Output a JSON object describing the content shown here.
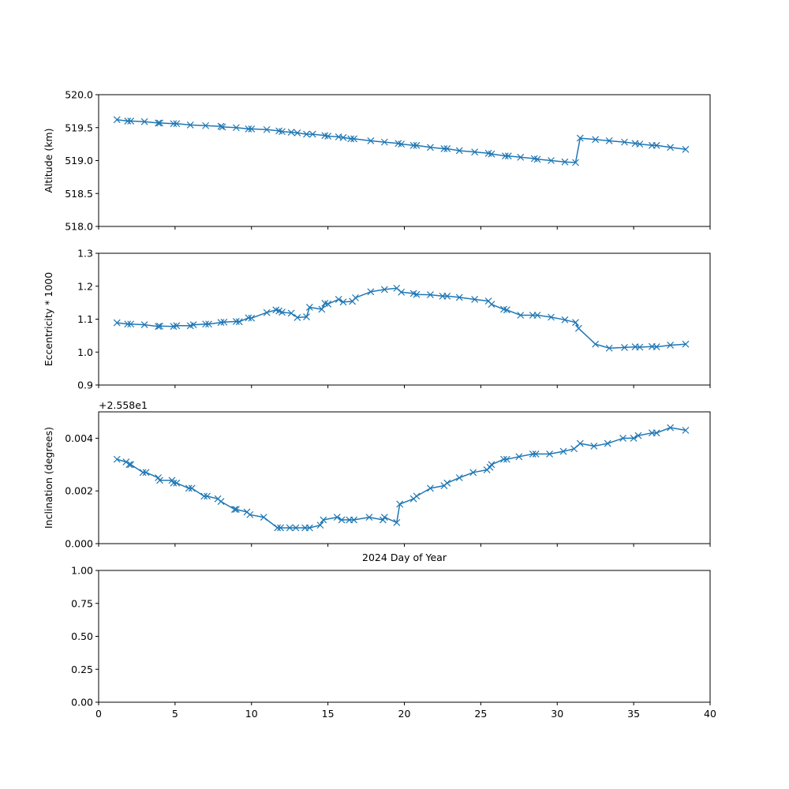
{
  "chart_data": [
    {
      "type": "line",
      "ylabel": "Altitude (km)",
      "xlim": [
        0,
        40
      ],
      "ylim": [
        518.0,
        520.0
      ],
      "yticks": [
        "518.0",
        "518.5",
        "519.0",
        "519.5",
        "520.0"
      ],
      "series": [
        {
          "x": [
            1.2,
            1.9,
            2.1,
            3.0,
            3.9,
            4.0,
            4.9,
            5.1,
            6.0,
            7.0,
            8.0,
            8.1,
            9.0,
            9.8,
            10.0,
            11.0,
            11.8,
            12.0,
            12.6,
            13.0,
            13.6,
            14.0,
            14.8,
            15.0,
            15.7,
            16.0,
            16.5,
            16.7,
            17.8,
            18.7,
            19.6,
            19.8,
            20.6,
            20.8,
            21.7,
            22.6,
            22.8,
            23.6,
            24.6,
            25.5,
            25.7,
            26.6,
            26.8,
            27.6,
            28.5,
            28.7,
            29.6,
            30.5,
            31.2,
            31.5,
            32.5,
            33.4,
            34.4,
            35.1,
            35.4,
            36.2,
            36.5,
            37.4,
            38.4
          ],
          "y": [
            519.62,
            519.6,
            519.6,
            519.59,
            519.57,
            519.57,
            519.56,
            519.56,
            519.54,
            519.53,
            519.52,
            519.51,
            519.5,
            519.48,
            519.48,
            519.47,
            519.45,
            519.44,
            519.43,
            519.42,
            519.4,
            519.4,
            519.38,
            519.37,
            519.36,
            519.35,
            519.33,
            519.33,
            519.3,
            519.28,
            519.26,
            519.25,
            519.23,
            519.23,
            519.2,
            519.18,
            519.18,
            519.15,
            519.13,
            519.11,
            519.1,
            519.07,
            519.07,
            519.05,
            519.03,
            519.02,
            519.0,
            518.98,
            518.97,
            519.34,
            519.32,
            519.3,
            519.28,
            519.26,
            519.25,
            519.23,
            519.23,
            519.2,
            519.17
          ]
        }
      ]
    },
    {
      "type": "line",
      "ylabel": "Eccentricity * 1000",
      "xlim": [
        0,
        40
      ],
      "ylim": [
        0.9,
        1.3
      ],
      "yticks": [
        "0.9",
        "1.0",
        "1.1",
        "1.2",
        "1.3"
      ],
      "series": [
        {
          "x": [
            1.2,
            1.9,
            2.1,
            3.0,
            3.9,
            4.0,
            4.9,
            5.1,
            6.0,
            6.2,
            7.0,
            7.2,
            8.0,
            8.2,
            9.0,
            9.2,
            9.8,
            10.0,
            11.0,
            11.6,
            11.8,
            12.0,
            12.6,
            13.0,
            13.6,
            13.8,
            14.6,
            14.8,
            15.0,
            15.7,
            16.0,
            16.6,
            16.8,
            17.8,
            18.7,
            19.5,
            19.8,
            20.6,
            20.8,
            21.7,
            22.5,
            22.8,
            23.6,
            24.6,
            25.5,
            25.7,
            26.5,
            26.7,
            27.6,
            28.4,
            28.7,
            29.6,
            30.5,
            31.2,
            31.4,
            32.5,
            33.4,
            34.4,
            35.1,
            35.4,
            36.2,
            36.5,
            37.4,
            38.4
          ],
          "y": [
            1.089,
            1.085,
            1.085,
            1.083,
            1.078,
            1.079,
            1.078,
            1.08,
            1.08,
            1.083,
            1.085,
            1.085,
            1.09,
            1.091,
            1.093,
            1.092,
            1.104,
            1.103,
            1.12,
            1.128,
            1.125,
            1.121,
            1.118,
            1.105,
            1.107,
            1.136,
            1.13,
            1.148,
            1.146,
            1.16,
            1.152,
            1.154,
            1.165,
            1.183,
            1.19,
            1.194,
            1.182,
            1.178,
            1.175,
            1.174,
            1.17,
            1.17,
            1.166,
            1.16,
            1.155,
            1.145,
            1.13,
            1.128,
            1.112,
            1.112,
            1.112,
            1.106,
            1.098,
            1.09,
            1.072,
            1.024,
            1.012,
            1.014,
            1.016,
            1.015,
            1.017,
            1.016,
            1.021,
            1.024
          ]
        }
      ]
    },
    {
      "type": "line",
      "ylabel": "Inclination (degrees)",
      "offset_text": "+2.558e1",
      "xlabel": "2024 Day of Year",
      "xlim": [
        0,
        40
      ],
      "ylim": [
        0.0,
        0.005
      ],
      "yticks": [
        "0.000",
        "0.002",
        "0.004"
      ],
      "series": [
        {
          "x": [
            1.2,
            1.8,
            2.0,
            2.1,
            2.9,
            3.1,
            3.9,
            4.0,
            4.8,
            4.9,
            5.1,
            5.9,
            6.1,
            6.9,
            7.1,
            7.8,
            8.0,
            8.9,
            9.0,
            9.7,
            9.9,
            10.8,
            11.7,
            11.9,
            12.5,
            12.9,
            13.5,
            13.8,
            14.5,
            14.7,
            15.6,
            15.9,
            16.4,
            16.7,
            17.7,
            18.6,
            18.7,
            19.5,
            19.7,
            20.6,
            20.8,
            21.7,
            22.6,
            22.8,
            23.6,
            24.5,
            25.4,
            25.6,
            25.7,
            26.5,
            26.7,
            27.5,
            28.4,
            28.6,
            29.5,
            30.4,
            31.1,
            31.5,
            32.4,
            33.3,
            34.3,
            35.0,
            35.3,
            36.2,
            36.5,
            37.4,
            38.4
          ],
          "y": [
            0.0032,
            0.0031,
            0.003,
            0.003,
            0.0027,
            0.0027,
            0.0025,
            0.0024,
            0.0024,
            0.0023,
            0.0023,
            0.0021,
            0.0021,
            0.0018,
            0.0018,
            0.0017,
            0.0016,
            0.0013,
            0.0013,
            0.0012,
            0.0011,
            0.001,
            0.0006,
            0.0006,
            0.0006,
            0.0006,
            0.0006,
            0.0006,
            0.0007,
            0.0009,
            0.001,
            0.0009,
            0.0009,
            0.0009,
            0.001,
            0.0009,
            0.001,
            0.0008,
            0.0015,
            0.0017,
            0.0018,
            0.0021,
            0.0022,
            0.0023,
            0.0025,
            0.0027,
            0.0028,
            0.0029,
            0.003,
            0.0032,
            0.0032,
            0.0033,
            0.0034,
            0.0034,
            0.0034,
            0.0035,
            0.0036,
            0.0038,
            0.0037,
            0.0038,
            0.004,
            0.004,
            0.0041,
            0.0042,
            0.0042,
            0.0044,
            0.0043
          ]
        }
      ]
    },
    {
      "type": "line",
      "xlim": [
        0,
        40
      ],
      "ylim": [
        0.0,
        1.0
      ],
      "yticks": [
        "0.00",
        "0.25",
        "0.50",
        "0.75",
        "1.00"
      ],
      "xticks": [
        "0",
        "5",
        "10",
        "15",
        "20",
        "25",
        "30",
        "35",
        "40"
      ],
      "series": []
    }
  ],
  "colors": {
    "line": "#1f77b4",
    "axes": "#000000"
  }
}
